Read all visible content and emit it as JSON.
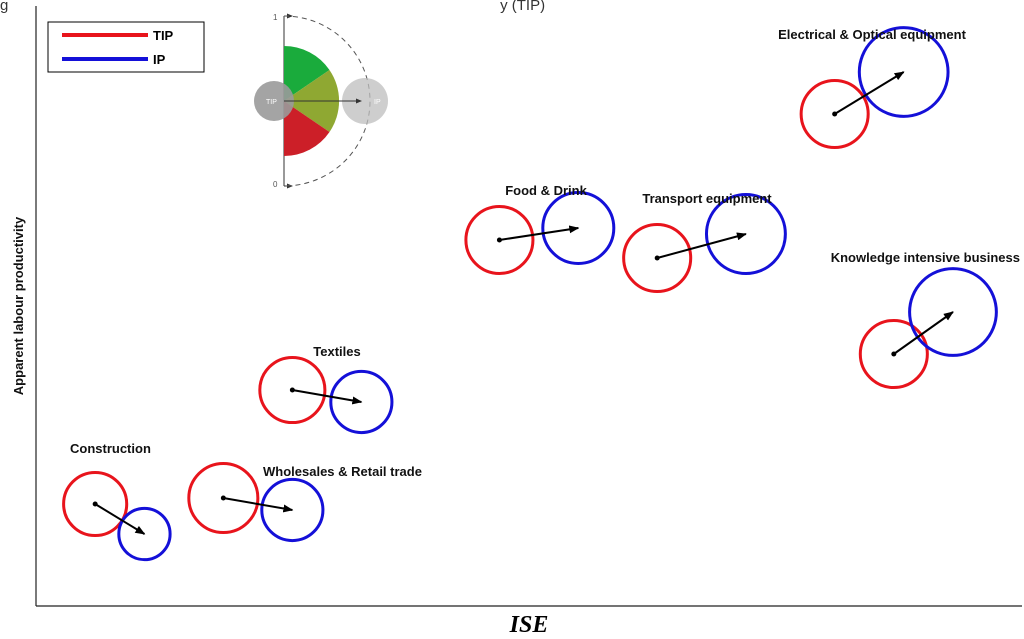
{
  "header_fragment": "g                                                                                                                      y (TIP)",
  "legend": [
    {
      "label": "TIP",
      "color": "#e8141c"
    },
    {
      "label": "IP",
      "color": "#1410d8"
    }
  ],
  "inset_key": {
    "tick_top": "1",
    "tick_bottom": "0",
    "start_label": "TIP",
    "end_label": "IP",
    "colors": {
      "top": "#1aab3c",
      "middle": "#8fa832",
      "bottom": "#cc1f28"
    }
  },
  "chart_data": {
    "type": "scatter",
    "xlabel": "ISE",
    "ylabel": "Apparent labour productivity",
    "grid": false,
    "legend_placement": "top-left",
    "series": [
      {
        "name": "TIP",
        "color": "#e8141c"
      },
      {
        "name": "IP",
        "color": "#1410d8"
      }
    ],
    "sectors": [
      {
        "label": "Construction",
        "tip": {
          "x": 0.06,
          "y": 0.17,
          "r": 0.032
        },
        "ip": {
          "x": 0.11,
          "y": 0.12,
          "r": 0.026
        }
      },
      {
        "label": "Wholesales & Retail trade",
        "tip": {
          "x": 0.19,
          "y": 0.18,
          "r": 0.035
        },
        "ip": {
          "x": 0.26,
          "y": 0.16,
          "r": 0.031
        }
      },
      {
        "label": "Textiles",
        "tip": {
          "x": 0.26,
          "y": 0.36,
          "r": 0.033
        },
        "ip": {
          "x": 0.33,
          "y": 0.34,
          "r": 0.031
        }
      },
      {
        "label": "Food & Drink",
        "tip": {
          "x": 0.47,
          "y": 0.61,
          "r": 0.034
        },
        "ip": {
          "x": 0.55,
          "y": 0.63,
          "r": 0.036
        }
      },
      {
        "label": "Transport equipment",
        "tip": {
          "x": 0.63,
          "y": 0.58,
          "r": 0.034
        },
        "ip": {
          "x": 0.72,
          "y": 0.62,
          "r": 0.04
        }
      },
      {
        "label": "Electrical & Optical equipment",
        "tip": {
          "x": 0.81,
          "y": 0.82,
          "r": 0.034
        },
        "ip": {
          "x": 0.88,
          "y": 0.89,
          "r": 0.045
        }
      },
      {
        "label": "Knowledge intensive business",
        "tip": {
          "x": 0.87,
          "y": 0.42,
          "r": 0.034
        },
        "ip": {
          "x": 0.93,
          "y": 0.49,
          "r": 0.044
        }
      }
    ]
  }
}
